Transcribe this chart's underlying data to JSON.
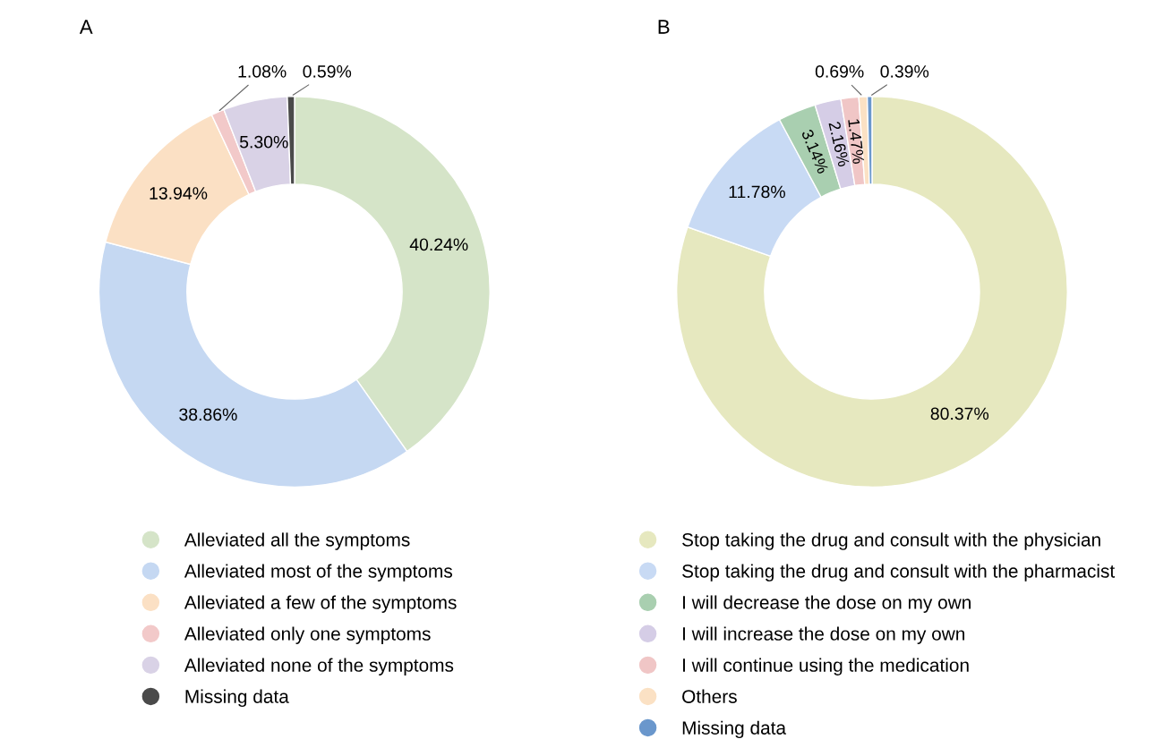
{
  "chart_data": [
    {
      "type": "donut",
      "title": "A",
      "categories": [
        "Alleviated all the symptoms",
        "Alleviated most of the symptoms",
        "Alleviated a few of the symptoms",
        "Alleviated only one symptoms",
        "Alleviated none of the symptoms",
        "Missing data"
      ],
      "values": [
        40.24,
        38.86,
        13.94,
        1.08,
        5.3,
        0.59
      ],
      "colors": [
        "#d5e4c8",
        "#c5d8f2",
        "#fbe0c4",
        "#f2c9c9",
        "#d9d2e6",
        "#4a4a4a"
      ],
      "value_labels": [
        "40.24%",
        "38.86%",
        "13.94%",
        "1.08%",
        "5.30%",
        "0.59%"
      ],
      "legend": "bottom"
    },
    {
      "type": "donut",
      "title": "B",
      "categories": [
        "Stop taking the drug and consult with the physician",
        "Stop taking the drug and consult with the pharmacist",
        "I will decrease the dose on my own",
        "I will increase the dose on my own",
        "I will continue using the medication",
        "Others",
        "Missing data"
      ],
      "values": [
        80.37,
        11.78,
        3.14,
        2.16,
        1.47,
        0.69,
        0.39
      ],
      "colors": [
        "#e6e8bf",
        "#c8daf4",
        "#a9cfb0",
        "#d5cde6",
        "#f0c6c6",
        "#fbe1c4",
        "#6a97cc"
      ],
      "value_labels": [
        "80.37%",
        "11.78%",
        "3.14%",
        "2.16%",
        "1.47%",
        "0.69%",
        "0.39%"
      ],
      "legend": "bottom"
    }
  ]
}
